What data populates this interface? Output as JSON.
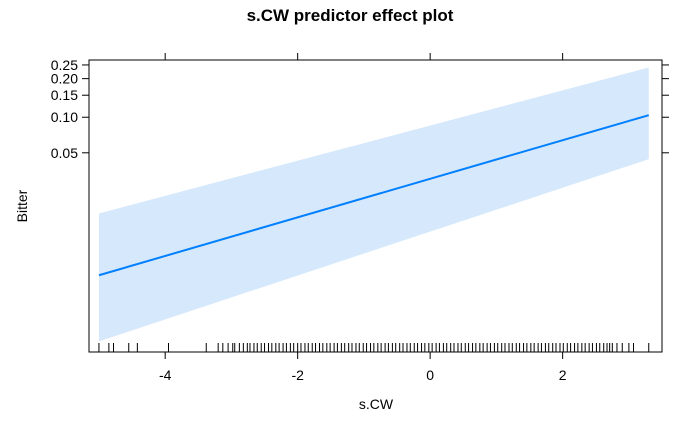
{
  "chart_data": {
    "type": "line",
    "title": "s.CW predictor effect plot",
    "xlabel": "s.CW",
    "ylabel": "Bitter",
    "xlim": [
      -5.15,
      3.5
    ],
    "x_ticks": [
      -4,
      -2,
      0,
      2
    ],
    "x_tick_labels": [
      "-4",
      "-2",
      "0",
      "2"
    ],
    "y_scale": "logit",
    "y_ticks": [
      0.05,
      0.1,
      0.15,
      0.2,
      0.25
    ],
    "y_tick_labels": [
      "0.05",
      "0.10",
      "0.15",
      "0.20",
      "0.25"
    ],
    "grid": false,
    "series": [
      {
        "x": [
          -5.0,
          3.3
        ],
        "fit": [
          0.004,
          0.104
        ],
        "lower": [
          0.001,
          0.044
        ],
        "upper": [
          0.0145,
          0.24
        ]
      }
    ],
    "band_color": "#d6e8fb",
    "line_color": "#0080ff",
    "rug": [
      -5.0,
      -4.85,
      -4.78,
      -4.55,
      -4.42,
      -3.95,
      -3.38,
      -3.2,
      -3.13,
      -3.05,
      -2.98,
      -2.95,
      -2.88,
      -2.82,
      -2.76,
      -2.72,
      -2.66,
      -2.61,
      -2.55,
      -2.5,
      -2.44,
      -2.39,
      -2.33,
      -2.28,
      -2.22,
      -2.17,
      -2.11,
      -2.06,
      -2.0,
      -1.95,
      -1.89,
      -1.84,
      -1.78,
      -1.73,
      -1.67,
      -1.62,
      -1.56,
      -1.51,
      -1.45,
      -1.4,
      -1.34,
      -1.29,
      -1.23,
      -1.18,
      -1.12,
      -1.07,
      -1.01,
      -0.96,
      -0.9,
      -0.85,
      -0.79,
      -0.74,
      -0.68,
      -0.63,
      -0.57,
      -0.52,
      -0.46,
      -0.41,
      -0.35,
      -0.3,
      -0.24,
      -0.19,
      -0.13,
      -0.08,
      -0.02,
      0.03,
      0.09,
      0.14,
      0.2,
      0.25,
      0.31,
      0.36,
      0.42,
      0.47,
      0.53,
      0.58,
      0.64,
      0.69,
      0.75,
      0.8,
      0.86,
      0.91,
      0.97,
      1.02,
      1.08,
      1.13,
      1.19,
      1.24,
      1.3,
      1.35,
      1.41,
      1.46,
      1.52,
      1.57,
      1.63,
      1.68,
      1.74,
      1.79,
      1.85,
      1.9,
      1.96,
      2.01,
      2.07,
      2.12,
      2.18,
      2.23,
      2.29,
      2.34,
      2.4,
      2.45,
      2.51,
      2.56,
      2.62,
      2.67,
      2.71,
      2.75,
      2.82,
      2.9,
      3.0,
      3.07,
      3.3
    ]
  }
}
